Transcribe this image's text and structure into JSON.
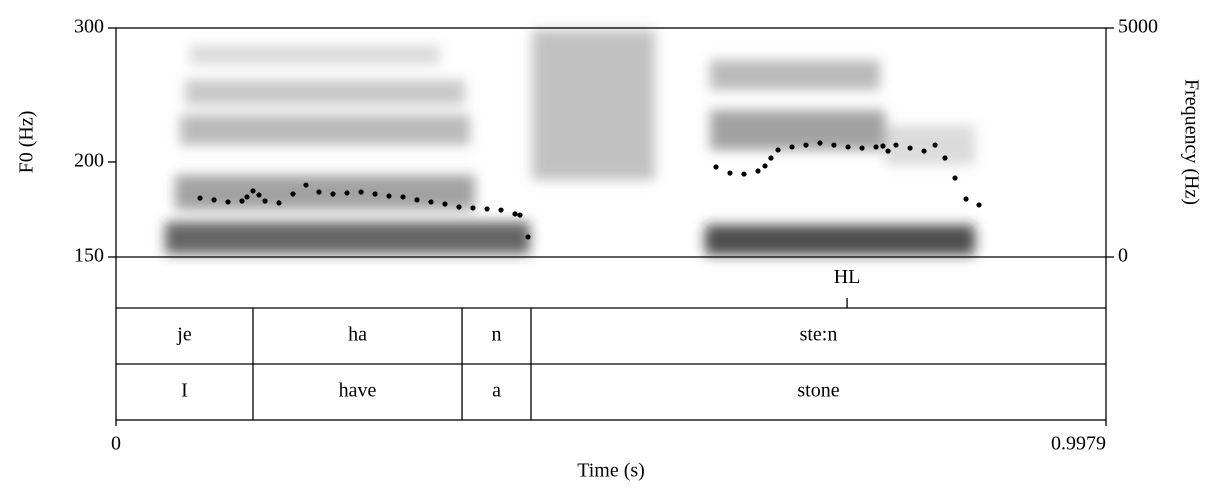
{
  "chart_data": {
    "type": "scatter",
    "ylabel": "F0 (Hz)",
    "y2label": "Frequency (Hz)",
    "xlabel": "Time (s)",
    "ylog": true,
    "ylim": [
      150,
      300
    ],
    "yticks": [
      150,
      200,
      300
    ],
    "y2lim": [
      0,
      5000
    ],
    "y2ticks": [
      0,
      5000
    ],
    "xlim": [
      0,
      0.9979
    ],
    "xticks": [
      0,
      0.9979
    ],
    "color": "#000000",
    "x": [
      0.0847,
      0.0988,
      0.1129,
      0.127,
      0.132,
      0.1381,
      0.1441,
      0.1502,
      0.1643,
      0.1784,
      0.1915,
      0.2046,
      0.2187,
      0.2328,
      0.247,
      0.2611,
      0.2752,
      0.2893,
      0.3034,
      0.3175,
      0.3316,
      0.3457,
      0.3598,
      0.374,
      0.3881,
      0.4022,
      0.4072,
      0.4153,
      0.6048,
      0.6189,
      0.633,
      0.6471,
      0.6542,
      0.6602,
      0.6673,
      0.6814,
      0.6955,
      0.7096,
      0.7237,
      0.7379,
      0.752,
      0.7661,
      0.7731,
      0.7782,
      0.7862,
      0.8004,
      0.8145,
      0.8256,
      0.8356,
      0.8457,
      0.8568,
      0.8699
    ],
    "values": [
      179.3,
      178.3,
      177.2,
      177.7,
      179.9,
      183.2,
      181.0,
      177.7,
      176.7,
      181.5,
      186.5,
      182.6,
      181.5,
      182.1,
      182.6,
      181.5,
      180.4,
      179.9,
      178.3,
      177.2,
      176.1,
      174.5,
      174.0,
      173.5,
      172.9,
      170.9,
      170.3,
      159.4,
      197.0,
      193.4,
      192.8,
      194.6,
      197.6,
      202.4,
      207.4,
      209.3,
      210.5,
      211.8,
      210.5,
      209.3,
      208.6,
      209.3,
      209.9,
      206.7,
      210.5,
      208.6,
      206.7,
      210.5,
      202.4,
      190.5,
      178.8,
      175.6
    ],
    "tiers": [
      {
        "points": [
          {
            "time": 0.7369,
            "label": "HL"
          }
        ]
      },
      {
        "boundaries": [
          0.1381,
          0.3488,
          0.4183
        ],
        "labels": [
          "je",
          "ha",
          "n",
          "ste:n"
        ]
      },
      {
        "boundaries": [
          0.1381,
          0.3488,
          0.4183
        ],
        "labels": [
          "I",
          "have",
          "a",
          "stone"
        ]
      }
    ]
  }
}
